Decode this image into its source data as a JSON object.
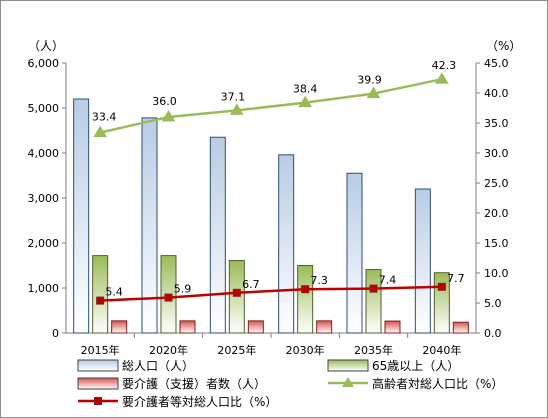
{
  "chart_data": {
    "type": "bar",
    "categories": [
      "2015年",
      "2020年",
      "2025年",
      "2030年",
      "2035年",
      "2040年"
    ],
    "left_axis": {
      "unit": "（人）",
      "ylim": [
        0,
        6000
      ],
      "ticks": [
        "0",
        "1,000",
        "2,000",
        "3,000",
        "4,000",
        "5,000",
        "6,000"
      ],
      "tick_values": [
        0,
        1000,
        2000,
        3000,
        4000,
        5000,
        6000
      ]
    },
    "right_axis": {
      "unit": "（%）",
      "ylim": [
        0,
        45
      ],
      "ticks": [
        "0.0",
        "5.0",
        "10.0",
        "15.0",
        "20.0",
        "25.0",
        "30.0",
        "35.0",
        "40.0",
        "45.0"
      ],
      "tick_values": [
        0,
        5,
        10,
        15,
        20,
        25,
        30,
        35,
        40,
        45
      ]
    },
    "bar_series": [
      {
        "name": "総人口（人）",
        "color": "#b8cce4",
        "edge": "#2f4e79",
        "values": [
          5200,
          4780,
          4350,
          3960,
          3550,
          3200
        ]
      },
      {
        "name": "65歳以上（人）",
        "color": "#9bbb59",
        "edge": "#4f6228",
        "values": [
          1720,
          1720,
          1610,
          1500,
          1410,
          1340
        ]
      },
      {
        "name": "要介護（支援）者数（人）",
        "color": "#d9534f",
        "edge": "#7f1f1f",
        "values": [
          270,
          270,
          270,
          270,
          265,
          240
        ]
      }
    ],
    "line_series": [
      {
        "name": "高齢者対総人口比（%）",
        "color": "#9bbb59",
        "marker": "triangle",
        "values": [
          33.4,
          36.0,
          37.1,
          38.4,
          39.9,
          42.3
        ],
        "labels": [
          "33.4",
          "36.0",
          "37.1",
          "38.4",
          "39.9",
          "42.3"
        ]
      },
      {
        "name": "要介護者等対総人口比（%）",
        "color": "#c00000",
        "marker": "square",
        "values": [
          5.4,
          5.9,
          6.7,
          7.3,
          7.4,
          7.7
        ],
        "labels": [
          "5.4",
          "5.9",
          "6.7",
          "7.3",
          "7.4",
          "7.7"
        ]
      }
    ],
    "legend": [
      {
        "name": "総人口（人）",
        "kind": "box",
        "color": "#b8cce4"
      },
      {
        "name": "65歳以上（人）",
        "kind": "box",
        "color": "#9bbb59"
      },
      {
        "name": "要介護（支援）者数（人）",
        "kind": "box",
        "color": "#d9534f"
      },
      {
        "name": "高齢者対総人口比（%）",
        "kind": "line-triangle",
        "color": "#9bbb59"
      },
      {
        "name": "要介護者等対総人口比（%）",
        "kind": "line-square",
        "color": "#c00000"
      }
    ],
    "legend_position": "bottom",
    "grid": false
  }
}
